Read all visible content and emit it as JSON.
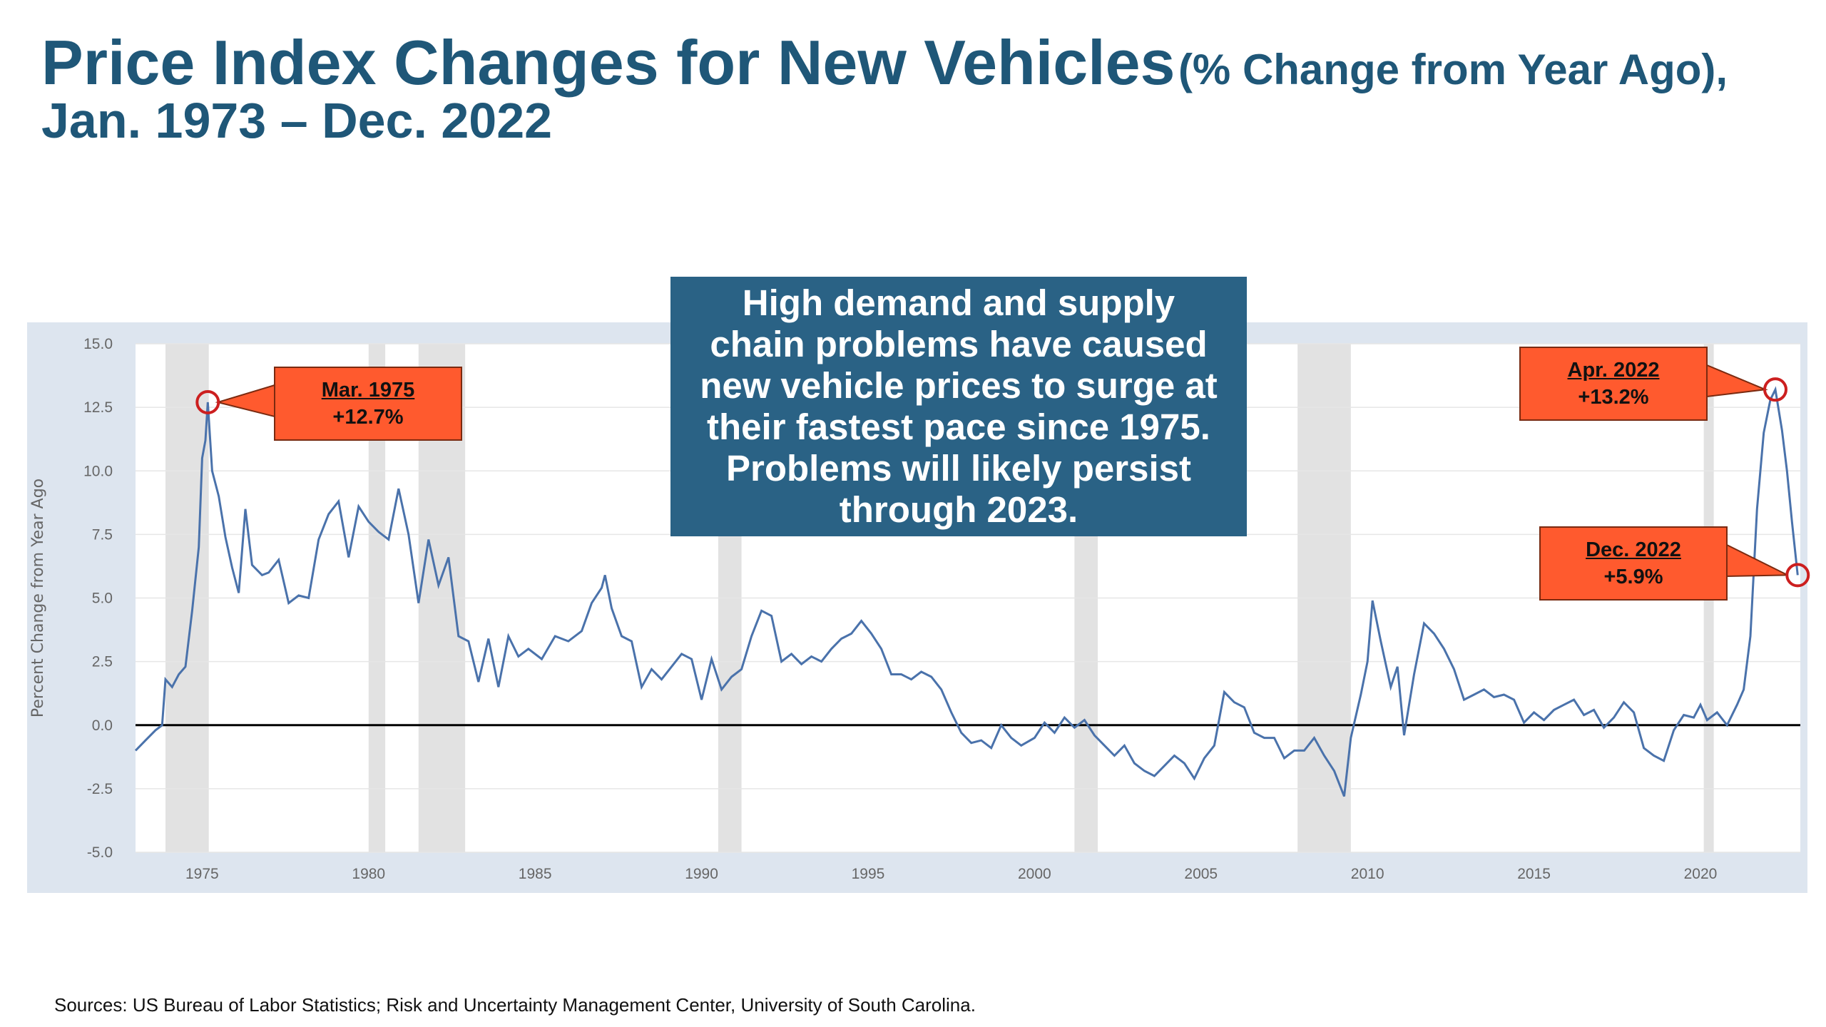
{
  "title": {
    "main": "Price Index Changes for New Vehicles",
    "paren": "(% Change from Year Ago),",
    "line2": "Jan. 1973 – Dec. 2022"
  },
  "callout": {
    "lines": [
      "High demand and supply",
      "chain problems have caused",
      "new vehicle prices to surge at",
      "their fastest pace since 1975.",
      "Problems will likely persist",
      "through 2023."
    ]
  },
  "annotations": [
    {
      "date_label": "Mar. 1975",
      "value_label": "+12.7%",
      "x": 1975.17,
      "y": 12.7
    },
    {
      "date_label": "Apr. 2022",
      "value_label": "+13.2%",
      "x": 2022.25,
      "y": 13.2
    },
    {
      "date_label": "Dec. 2022",
      "value_label": "+5.9%",
      "x": 2022.92,
      "y": 5.9
    }
  ],
  "source": "Sources: US Bureau of Labor Statistics; Risk and Uncertainty Management Center, University of South Carolina.",
  "colors": {
    "title": "#1f5778",
    "callout_bg": "#2a6285",
    "label_bg": "#ff5a2e",
    "line": "#4a72ab",
    "recession": "#e2e2e2",
    "panel": "#dde5ef",
    "marker": "#cc1f1f"
  },
  "chart_data": {
    "type": "line",
    "title": "",
    "xlabel": "",
    "ylabel": "Percent Change from Year Ago",
    "xlim": [
      1973,
      2023.0
    ],
    "ylim": [
      -5.0,
      15.0
    ],
    "x_ticks": [
      1975,
      1980,
      1985,
      1990,
      1995,
      2000,
      2005,
      2010,
      2015,
      2020
    ],
    "y_ticks": [
      -5.0,
      -2.5,
      0.0,
      2.5,
      5.0,
      7.5,
      10.0,
      12.5,
      15.0
    ],
    "y_tick_labels": [
      "-5.0",
      "-2.5",
      "0.0",
      "2.5",
      "5.0",
      "7.5",
      "10.0",
      "12.5",
      "15.0"
    ],
    "grid": true,
    "zero_line": true,
    "recessions": [
      [
        1973.9,
        1975.2
      ],
      [
        1980.0,
        1980.5
      ],
      [
        1981.5,
        1982.9
      ],
      [
        1990.5,
        1991.2
      ],
      [
        2001.2,
        2001.9
      ],
      [
        2007.9,
        2009.5
      ],
      [
        2020.1,
        2020.4
      ]
    ],
    "series": [
      {
        "values": [
          [
            1973.0,
            -1.0
          ],
          [
            1973.3,
            -0.6
          ],
          [
            1973.6,
            -0.2
          ],
          [
            1973.8,
            0.0
          ],
          [
            1973.9,
            1.8
          ],
          [
            1974.1,
            1.5
          ],
          [
            1974.3,
            2.0
          ],
          [
            1974.5,
            2.3
          ],
          [
            1974.7,
            4.5
          ],
          [
            1974.9,
            7.0
          ],
          [
            1975.0,
            10.5
          ],
          [
            1975.1,
            11.2
          ],
          [
            1975.17,
            12.7
          ],
          [
            1975.3,
            10.0
          ],
          [
            1975.5,
            9.0
          ],
          [
            1975.7,
            7.4
          ],
          [
            1975.9,
            6.2
          ],
          [
            1976.1,
            5.2
          ],
          [
            1976.3,
            8.5
          ],
          [
            1976.5,
            6.3
          ],
          [
            1976.8,
            5.9
          ],
          [
            1977.0,
            6.0
          ],
          [
            1977.3,
            6.5
          ],
          [
            1977.6,
            4.8
          ],
          [
            1977.9,
            5.1
          ],
          [
            1978.2,
            5.0
          ],
          [
            1978.5,
            7.3
          ],
          [
            1978.8,
            8.3
          ],
          [
            1979.1,
            8.8
          ],
          [
            1979.4,
            6.6
          ],
          [
            1979.7,
            8.6
          ],
          [
            1980.0,
            8.0
          ],
          [
            1980.3,
            7.6
          ],
          [
            1980.6,
            7.3
          ],
          [
            1980.9,
            9.3
          ],
          [
            1981.2,
            7.5
          ],
          [
            1981.5,
            4.8
          ],
          [
            1981.8,
            7.3
          ],
          [
            1982.1,
            5.5
          ],
          [
            1982.4,
            6.6
          ],
          [
            1982.7,
            3.5
          ],
          [
            1983.0,
            3.3
          ],
          [
            1983.3,
            1.7
          ],
          [
            1983.6,
            3.4
          ],
          [
            1983.9,
            1.5
          ],
          [
            1984.2,
            3.5
          ],
          [
            1984.5,
            2.7
          ],
          [
            1984.8,
            3.0
          ],
          [
            1985.2,
            2.6
          ],
          [
            1985.6,
            3.5
          ],
          [
            1986.0,
            3.3
          ],
          [
            1986.4,
            3.7
          ],
          [
            1986.7,
            4.8
          ],
          [
            1987.0,
            5.4
          ],
          [
            1987.1,
            5.9
          ],
          [
            1987.3,
            4.6
          ],
          [
            1987.6,
            3.5
          ],
          [
            1987.9,
            3.3
          ],
          [
            1988.2,
            1.5
          ],
          [
            1988.5,
            2.2
          ],
          [
            1988.8,
            1.8
          ],
          [
            1989.1,
            2.3
          ],
          [
            1989.4,
            2.8
          ],
          [
            1989.7,
            2.6
          ],
          [
            1990.0,
            1.0
          ],
          [
            1990.3,
            2.6
          ],
          [
            1990.6,
            1.4
          ],
          [
            1990.9,
            1.9
          ],
          [
            1991.2,
            2.2
          ],
          [
            1991.5,
            3.5
          ],
          [
            1991.8,
            4.5
          ],
          [
            1992.1,
            4.3
          ],
          [
            1992.4,
            2.5
          ],
          [
            1992.7,
            2.8
          ],
          [
            1993.0,
            2.4
          ],
          [
            1993.3,
            2.7
          ],
          [
            1993.6,
            2.5
          ],
          [
            1993.9,
            3.0
          ],
          [
            1994.2,
            3.4
          ],
          [
            1994.5,
            3.6
          ],
          [
            1994.8,
            4.1
          ],
          [
            1995.1,
            3.6
          ],
          [
            1995.4,
            3.0
          ],
          [
            1995.7,
            2.0
          ],
          [
            1996.0,
            2.0
          ],
          [
            1996.3,
            1.8
          ],
          [
            1996.6,
            2.1
          ],
          [
            1996.9,
            1.9
          ],
          [
            1997.2,
            1.4
          ],
          [
            1997.5,
            0.5
          ],
          [
            1997.8,
            -0.3
          ],
          [
            1998.1,
            -0.7
          ],
          [
            1998.4,
            -0.6
          ],
          [
            1998.7,
            -0.9
          ],
          [
            1999.0,
            0.0
          ],
          [
            1999.3,
            -0.5
          ],
          [
            1999.6,
            -0.8
          ],
          [
            2000.0,
            -0.5
          ],
          [
            2000.3,
            0.1
          ],
          [
            2000.6,
            -0.3
          ],
          [
            2000.9,
            0.3
          ],
          [
            2001.2,
            -0.1
          ],
          [
            2001.5,
            0.2
          ],
          [
            2001.8,
            -0.4
          ],
          [
            2002.1,
            -0.8
          ],
          [
            2002.4,
            -1.2
          ],
          [
            2002.7,
            -0.8
          ],
          [
            2003.0,
            -1.5
          ],
          [
            2003.3,
            -1.8
          ],
          [
            2003.6,
            -2.0
          ],
          [
            2003.9,
            -1.6
          ],
          [
            2004.2,
            -1.2
          ],
          [
            2004.5,
            -1.5
          ],
          [
            2004.8,
            -2.1
          ],
          [
            2005.1,
            -1.3
          ],
          [
            2005.4,
            -0.8
          ],
          [
            2005.7,
            1.3
          ],
          [
            2006.0,
            0.9
          ],
          [
            2006.3,
            0.7
          ],
          [
            2006.6,
            -0.3
          ],
          [
            2006.9,
            -0.5
          ],
          [
            2007.2,
            -0.5
          ],
          [
            2007.5,
            -1.3
          ],
          [
            2007.8,
            -1.0
          ],
          [
            2008.1,
            -1.0
          ],
          [
            2008.4,
            -0.5
          ],
          [
            2008.7,
            -1.2
          ],
          [
            2009.0,
            -1.8
          ],
          [
            2009.3,
            -2.8
          ],
          [
            2009.5,
            -0.5
          ],
          [
            2009.8,
            1.2
          ],
          [
            2010.0,
            2.5
          ],
          [
            2010.15,
            4.9
          ],
          [
            2010.4,
            3.3
          ],
          [
            2010.7,
            1.5
          ],
          [
            2010.9,
            2.3
          ],
          [
            2011.1,
            -0.4
          ],
          [
            2011.4,
            2.0
          ],
          [
            2011.7,
            4.0
          ],
          [
            2012.0,
            3.6
          ],
          [
            2012.3,
            3.0
          ],
          [
            2012.6,
            2.2
          ],
          [
            2012.9,
            1.0
          ],
          [
            2013.2,
            1.2
          ],
          [
            2013.5,
            1.4
          ],
          [
            2013.8,
            1.1
          ],
          [
            2014.1,
            1.2
          ],
          [
            2014.4,
            1.0
          ],
          [
            2014.7,
            0.1
          ],
          [
            2015.0,
            0.5
          ],
          [
            2015.3,
            0.2
          ],
          [
            2015.6,
            0.6
          ],
          [
            2015.9,
            0.8
          ],
          [
            2016.2,
            1.0
          ],
          [
            2016.5,
            0.4
          ],
          [
            2016.8,
            0.6
          ],
          [
            2017.1,
            -0.1
          ],
          [
            2017.4,
            0.3
          ],
          [
            2017.7,
            0.9
          ],
          [
            2018.0,
            0.5
          ],
          [
            2018.3,
            -0.9
          ],
          [
            2018.6,
            -1.2
          ],
          [
            2018.9,
            -1.4
          ],
          [
            2019.2,
            -0.2
          ],
          [
            2019.5,
            0.4
          ],
          [
            2019.8,
            0.3
          ],
          [
            2020.0,
            0.8
          ],
          [
            2020.2,
            0.2
          ],
          [
            2020.5,
            0.5
          ],
          [
            2020.8,
            0.0
          ],
          [
            2021.1,
            0.8
          ],
          [
            2021.3,
            1.4
          ],
          [
            2021.5,
            3.5
          ],
          [
            2021.7,
            8.5
          ],
          [
            2021.9,
            11.5
          ],
          [
            2022.1,
            12.8
          ],
          [
            2022.25,
            13.2
          ],
          [
            2022.45,
            11.6
          ],
          [
            2022.6,
            10.0
          ],
          [
            2022.75,
            8.0
          ],
          [
            2022.92,
            5.9
          ]
        ]
      }
    ]
  }
}
